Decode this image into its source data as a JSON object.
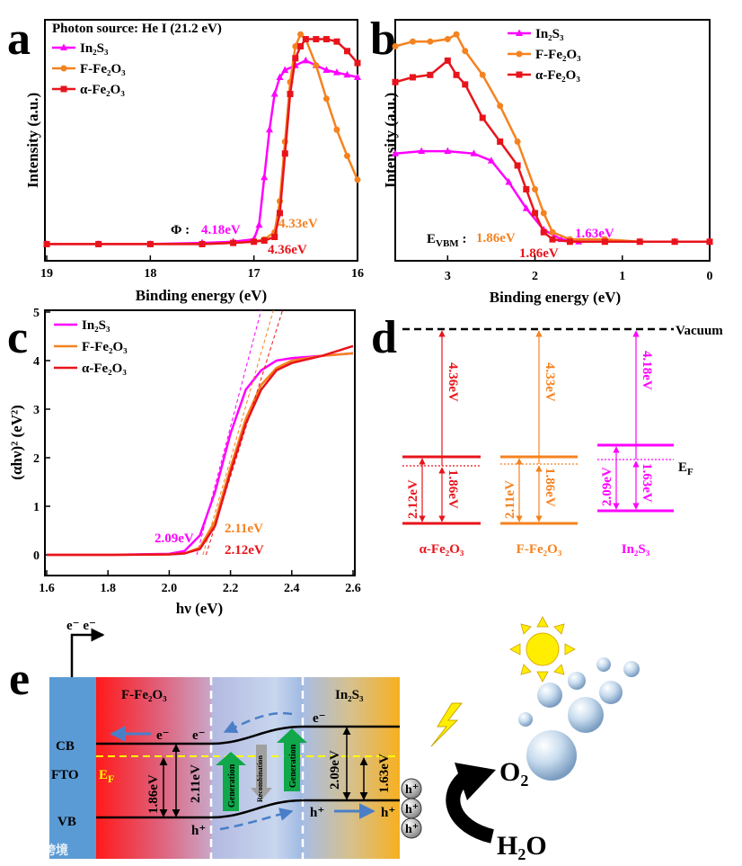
{
  "colors": {
    "in2s3": "#ff00ff",
    "ffe2o3": "#f5821f",
    "afe2o3": "#e8141b",
    "generation": "#10a84a",
    "recombination": "#a0a0a0",
    "ef": "#ffff00",
    "fto": "#5b9bd5",
    "arrow_blue": "#4a7fc8"
  },
  "panels": {
    "a": "a",
    "b": "b",
    "c": "c",
    "d": "d",
    "e": "e"
  },
  "chart_data": [
    {
      "id": "a",
      "type": "line",
      "title": "Photon source: He I (21.2 eV)",
      "xlabel": "Binding energy (eV)",
      "ylabel": "Intensity (a.u.)",
      "xlim": [
        19,
        16
      ],
      "ylim": [
        0,
        1
      ],
      "x_ticks": [
        19,
        18,
        17,
        16
      ],
      "legend": "top-left",
      "series": [
        {
          "name": "In₂S₃",
          "color": "#ff00ff",
          "marker": "triangle",
          "x": [
            19,
            18.5,
            18,
            17.5,
            17.2,
            17.0,
            16.95,
            16.9,
            16.85,
            16.8,
            16.75,
            16.7,
            16.6,
            16.5,
            16.4,
            16.3,
            16.2,
            16.1,
            16.0
          ],
          "y": [
            0.07,
            0.07,
            0.07,
            0.075,
            0.08,
            0.09,
            0.15,
            0.35,
            0.55,
            0.7,
            0.77,
            0.8,
            0.82,
            0.84,
            0.82,
            0.8,
            0.79,
            0.78,
            0.77
          ]
        },
        {
          "name": "F-Fe₂O₃",
          "color": "#f5821f",
          "marker": "circle",
          "x": [
            19,
            18.5,
            18,
            17.5,
            17.2,
            17.0,
            16.9,
            16.8,
            16.75,
            16.7,
            16.65,
            16.6,
            16.55,
            16.5,
            16.4,
            16.3,
            16.2,
            16.1,
            16.0
          ],
          "y": [
            0.07,
            0.07,
            0.07,
            0.07,
            0.075,
            0.08,
            0.09,
            0.12,
            0.25,
            0.5,
            0.75,
            0.9,
            0.95,
            0.93,
            0.82,
            0.68,
            0.55,
            0.44,
            0.34
          ]
        },
        {
          "name": "α-Fe₂O₃",
          "color": "#e8141b",
          "marker": "square",
          "x": [
            19,
            18.5,
            18,
            17.5,
            17.2,
            17.0,
            16.9,
            16.8,
            16.75,
            16.7,
            16.65,
            16.6,
            16.55,
            16.5,
            16.4,
            16.3,
            16.2,
            16.1,
            16.0
          ],
          "y": [
            0.07,
            0.07,
            0.07,
            0.07,
            0.075,
            0.08,
            0.085,
            0.1,
            0.2,
            0.45,
            0.7,
            0.85,
            0.9,
            0.93,
            0.93,
            0.93,
            0.92,
            0.88,
            0.83
          ]
        }
      ],
      "annotations": {
        "phi": "Φ :",
        "in2s3": "4.18eV",
        "ffe2o3": "4.33eV",
        "afe2o3": "4.36eV"
      }
    },
    {
      "id": "b",
      "type": "line",
      "xlabel": "Binding energy (eV)",
      "ylabel": "Intensity (a.u.)",
      "xlim": [
        3.6,
        0
      ],
      "ylim": [
        0,
        1
      ],
      "x_ticks": [
        3,
        2,
        1,
        0
      ],
      "legend": "top-right",
      "series": [
        {
          "name": "In₂S₃",
          "color": "#ff00ff",
          "marker": "triangle",
          "x": [
            3.6,
            3.3,
            3.0,
            2.7,
            2.5,
            2.3,
            2.1,
            1.9,
            1.7,
            1.5,
            1.2,
            0.8,
            0.4,
            0
          ],
          "y": [
            0.45,
            0.46,
            0.46,
            0.45,
            0.42,
            0.33,
            0.22,
            0.13,
            0.09,
            0.08,
            0.08,
            0.08,
            0.08,
            0.08
          ]
        },
        {
          "name": "F-Fe₂O₃",
          "color": "#f5821f",
          "marker": "circle",
          "x": [
            3.6,
            3.4,
            3.2,
            3.0,
            2.9,
            2.8,
            2.6,
            2.4,
            2.2,
            2.0,
            1.9,
            1.8,
            1.6,
            1.2,
            0.8,
            0.4,
            0
          ],
          "y": [
            0.9,
            0.92,
            0.92,
            0.93,
            0.95,
            0.88,
            0.78,
            0.65,
            0.5,
            0.3,
            0.2,
            0.12,
            0.09,
            0.09,
            0.08,
            0.08,
            0.08
          ]
        },
        {
          "name": "α-Fe₂O₃",
          "color": "#e8141b",
          "marker": "square",
          "x": [
            3.6,
            3.4,
            3.2,
            3.0,
            2.9,
            2.8,
            2.6,
            2.4,
            2.2,
            2.1,
            2.0,
            1.9,
            1.8,
            1.6,
            1.2,
            0.8,
            0.4,
            0
          ],
          "y": [
            0.75,
            0.77,
            0.78,
            0.84,
            0.78,
            0.74,
            0.6,
            0.5,
            0.4,
            0.3,
            0.2,
            0.12,
            0.09,
            0.08,
            0.08,
            0.08,
            0.08,
            0.08
          ]
        }
      ],
      "annotations": {
        "evbm": "E",
        "evbm_sub": "VBM",
        "evbm_colon": " :",
        "ffe2o3": "1.86eV",
        "in2s3": "1.63eV",
        "afe2o3": "1.86eV"
      }
    },
    {
      "id": "c",
      "type": "line",
      "xlabel": "hν (eV)",
      "ylabel": "(αhν)² (eV²)",
      "xlim": [
        1.6,
        2.6
      ],
      "ylim": [
        0,
        5
      ],
      "x_ticks": [
        1.6,
        1.8,
        2.0,
        2.2,
        2.4,
        2.6
      ],
      "x_tick_labels": [
        "1.6",
        "1.8",
        "2.0",
        "2.2",
        "2.4",
        "2.6"
      ],
      "y_ticks": [
        0,
        1,
        2,
        3,
        4,
        5
      ],
      "legend": "top-left",
      "series": [
        {
          "name": "In₂S₃",
          "color": "#ff00ff",
          "x": [
            1.6,
            1.8,
            2.0,
            2.05,
            2.1,
            2.15,
            2.2,
            2.25,
            2.3,
            2.35,
            2.4,
            2.5,
            2.6
          ],
          "y": [
            0,
            0,
            0.02,
            0.08,
            0.4,
            1.3,
            2.5,
            3.4,
            3.8,
            4.0,
            4.05,
            4.1,
            4.15
          ],
          "tangent": [
            [
              2.09,
              0
            ],
            [
              2.3,
              5.2
            ]
          ]
        },
        {
          "name": "F-Fe₂O₃",
          "color": "#f5821f",
          "x": [
            1.6,
            1.8,
            2.0,
            2.05,
            2.1,
            2.15,
            2.2,
            2.25,
            2.3,
            2.35,
            2.4,
            2.5,
            2.6
          ],
          "y": [
            0,
            0,
            0.01,
            0.03,
            0.15,
            0.7,
            1.8,
            2.8,
            3.5,
            3.85,
            4.0,
            4.1,
            4.15
          ],
          "tangent": [
            [
              2.11,
              0
            ],
            [
              2.34,
              5.2
            ]
          ]
        },
        {
          "name": "α-Fe₂O₃",
          "color": "#e8141b",
          "x": [
            1.6,
            1.8,
            2.0,
            2.05,
            2.1,
            2.15,
            2.2,
            2.25,
            2.3,
            2.35,
            2.4,
            2.5,
            2.6
          ],
          "y": [
            0,
            0,
            0.01,
            0.03,
            0.12,
            0.6,
            1.7,
            2.7,
            3.4,
            3.8,
            3.95,
            4.1,
            4.3
          ],
          "tangent": [
            [
              2.12,
              0
            ],
            [
              2.37,
              5.2
            ]
          ]
        }
      ],
      "annotations": {
        "in2s3": "2.09eV",
        "ffe2o3": "2.11eV",
        "afe2o3": "2.12eV"
      }
    }
  ],
  "band_diagram": {
    "vacuum": "Vacuum",
    "ef": "E",
    "ef_sub": "F",
    "materials": [
      {
        "name": "α-Fe₂O₃",
        "work_function": "4.36eV",
        "gap": "2.12eV",
        "vbm": "1.86eV"
      },
      {
        "name": "F-Fe₂O₃",
        "work_function": "4.33eV",
        "gap": "2.11eV",
        "vbm": "1.86eV"
      },
      {
        "name": "In₂S₃",
        "work_function": "4.18eV",
        "gap": "2.09eV",
        "vbm": "1.63eV"
      }
    ]
  },
  "scheme": {
    "electrons_out": "e⁻ e⁻",
    "ffe2o3": "F-Fe₂O₃",
    "in2s3": "In₂S₃",
    "cb": "CB",
    "fto": "FTO",
    "vb": "VB",
    "ef": "E",
    "ef_sub": "F",
    "e": "e⁻",
    "h": "h⁺",
    "gap_f": "2.11eV",
    "vbm_f": "1.86eV",
    "gap_in": "2.09eV",
    "vbm_in": "1.63eV",
    "generation": "Generation",
    "recombination": "Recombination",
    "o2": "O₂",
    "h2o": "H₂O",
    "watermark": "大数跨境"
  }
}
